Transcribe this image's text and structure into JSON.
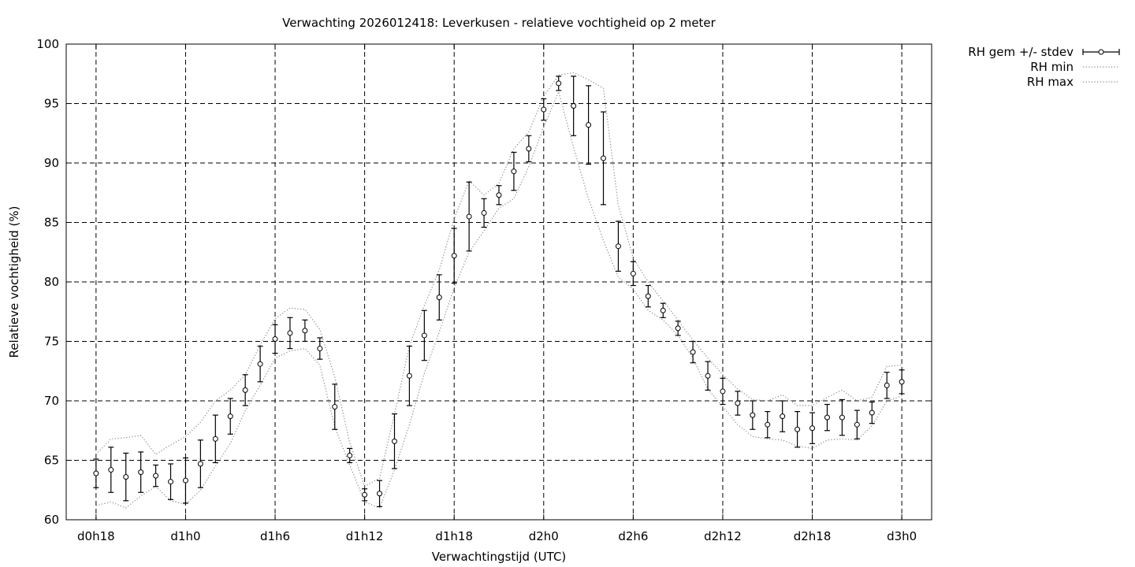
{
  "chart_data": {
    "type": "line",
    "title": "Verwachting 2026012418: Leverkusen - relatieve vochtigheid op 2 meter",
    "xlabel": "Verwachtingstijd (UTC)",
    "ylabel": "Relatieve vochtigheid (%)",
    "xlim": [
      -2,
      56
    ],
    "ylim": [
      60,
      100
    ],
    "grid": true,
    "legend_position": "outside top-right",
    "x_ticks": [
      0,
      6,
      12,
      18,
      24,
      30,
      36,
      42,
      48,
      54
    ],
    "x_tick_labels": [
      "d0h18",
      "d1h0",
      "d1h6",
      "d1h12",
      "d1h18",
      "d2h0",
      "d2h6",
      "d2h12",
      "d2h18",
      "d3h0"
    ],
    "y_ticks": [
      60,
      65,
      70,
      75,
      80,
      85,
      90,
      95,
      100
    ],
    "y_tick_labels": [
      "60",
      "65",
      "70",
      "75",
      "80",
      "85",
      "90",
      "95",
      "100"
    ],
    "x_unit_note": "hours after d0h18",
    "series": [
      {
        "name": "RH gem +/- stdev",
        "style": "points with error bars",
        "x": [
          0,
          1,
          2,
          3,
          4,
          5,
          6,
          7,
          8,
          9,
          10,
          11,
          12,
          13,
          14,
          15,
          16,
          17,
          18,
          19,
          20,
          21,
          22,
          23,
          24,
          25,
          26,
          27,
          28,
          29,
          30,
          31,
          32,
          33,
          34,
          35,
          36,
          37,
          38,
          39,
          40,
          41,
          42,
          43,
          44,
          45,
          46,
          47,
          48,
          49,
          50,
          51,
          52,
          53,
          54
        ],
        "mean": [
          63.9,
          64.2,
          63.6,
          64.0,
          63.7,
          63.2,
          63.3,
          64.7,
          66.8,
          68.7,
          70.9,
          73.1,
          75.2,
          75.7,
          75.9,
          74.4,
          69.5,
          65.4,
          62.1,
          62.2,
          66.6,
          72.1,
          75.5,
          78.7,
          82.2,
          85.5,
          85.8,
          87.3,
          89.3,
          91.2,
          94.5,
          96.7,
          94.8,
          93.2,
          90.4,
          83.0,
          80.7,
          78.8,
          77.6,
          76.1,
          74.1,
          72.1,
          70.8,
          69.8,
          68.8,
          68.0,
          68.7,
          67.6,
          67.7,
          68.6,
          68.6,
          68.0,
          69.0,
          71.3,
          71.6
        ],
        "stdev": [
          1.2,
          1.9,
          2.0,
          1.7,
          0.9,
          1.5,
          1.9,
          2.0,
          2.0,
          1.5,
          1.3,
          1.5,
          1.2,
          1.3,
          0.9,
          0.9,
          1.9,
          0.6,
          0.5,
          1.1,
          2.3,
          2.5,
          2.1,
          1.9,
          2.3,
          2.9,
          1.2,
          0.8,
          1.6,
          1.1,
          0.9,
          0.6,
          2.5,
          3.3,
          3.9,
          2.1,
          1.0,
          0.9,
          0.6,
          0.6,
          0.9,
          1.2,
          1.1,
          1.0,
          1.2,
          1.1,
          1.3,
          1.5,
          1.3,
          1.1,
          1.5,
          1.2,
          0.9,
          1.1,
          1.0
        ]
      },
      {
        "name": "RH min",
        "style": "dotted",
        "x": [
          0,
          1,
          2,
          3,
          4,
          5,
          6,
          7,
          8,
          9,
          10,
          11,
          12,
          13,
          14,
          15,
          16,
          17,
          18,
          19,
          20,
          21,
          22,
          23,
          24,
          25,
          26,
          27,
          28,
          29,
          30,
          31,
          32,
          33,
          34,
          35,
          36,
          37,
          38,
          39,
          40,
          41,
          42,
          43,
          44,
          45,
          46,
          47,
          48,
          49,
          50,
          51,
          52,
          53,
          54
        ],
        "values": [
          61.2,
          61.5,
          61.0,
          62.0,
          62.8,
          61.6,
          61.3,
          62.5,
          64.5,
          66.4,
          69.2,
          71.3,
          73.6,
          74.2,
          74.4,
          73.0,
          67.8,
          64.6,
          61.5,
          61.0,
          64.2,
          68.0,
          72.3,
          75.8,
          79.5,
          82.5,
          84.3,
          86.2,
          87.0,
          89.7,
          93.0,
          96.0,
          91.3,
          87.0,
          83.5,
          80.4,
          79.4,
          77.6,
          76.8,
          75.5,
          73.6,
          71.0,
          69.5,
          68.0,
          67.0,
          66.8,
          66.7,
          66.2,
          66.0,
          66.7,
          66.8,
          66.7,
          67.9,
          70.0,
          70.4
        ]
      },
      {
        "name": "RH max",
        "style": "dotted",
        "x": [
          0,
          1,
          2,
          3,
          4,
          5,
          6,
          7,
          8,
          9,
          10,
          11,
          12,
          13,
          14,
          15,
          16,
          17,
          18,
          19,
          20,
          21,
          22,
          23,
          24,
          25,
          26,
          27,
          28,
          29,
          30,
          31,
          32,
          33,
          34,
          35,
          36,
          37,
          38,
          39,
          40,
          41,
          42,
          43,
          44,
          45,
          46,
          47,
          48,
          49,
          50,
          51,
          52,
          53,
          54
        ],
        "values": [
          65.5,
          66.8,
          66.9,
          67.1,
          65.5,
          66.3,
          67.0,
          68.2,
          70.0,
          70.9,
          72.2,
          74.7,
          76.9,
          77.8,
          77.7,
          76.0,
          72.0,
          66.5,
          62.8,
          63.5,
          68.9,
          74.6,
          78.0,
          81.0,
          85.3,
          88.5,
          87.3,
          88.3,
          91.2,
          92.6,
          95.6,
          97.4,
          97.6,
          97.0,
          96.3,
          86.5,
          82.0,
          80.0,
          78.4,
          76.8,
          75.1,
          73.6,
          72.2,
          71.0,
          70.1,
          70.0,
          70.5,
          69.6,
          69.6,
          70.3,
          70.9,
          70.0,
          70.3,
          72.9,
          73.0
        ]
      }
    ]
  }
}
